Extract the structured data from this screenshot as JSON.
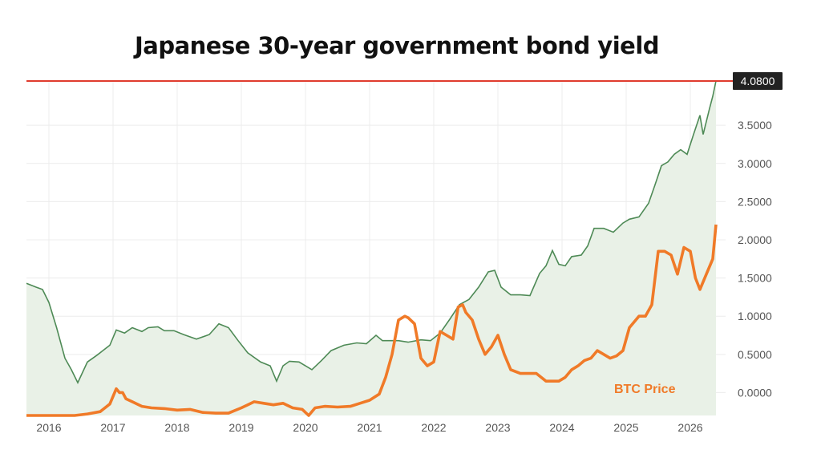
{
  "chart_data": {
    "type": "line",
    "title": "Japanese 30-year government bond yield",
    "xlabel": "",
    "ylabel": "",
    "x_ticks": [
      "2016",
      "2017",
      "2018",
      "2019",
      "2020",
      "2021",
      "2022",
      "2023",
      "2024",
      "2025",
      "2026"
    ],
    "y_ticks": [
      "0.0000",
      "0.5000",
      "1.0000",
      "1.5000",
      "2.0000",
      "2.5000",
      "3.0000",
      "3.5000"
    ],
    "xlim": [
      2015.65,
      2026.55
    ],
    "ylim": [
      -0.3,
      4.3
    ],
    "grid": true,
    "legend": "none",
    "current_value": {
      "label": "4.0800",
      "value": 4.08,
      "color": "#e03c2e"
    },
    "annotation": {
      "text": "BTC Price",
      "color": "#f07a28"
    },
    "colors": {
      "yield_line": "#4e8a56",
      "yield_fill": "#e9f1e7",
      "btc_line": "#f07a28",
      "grid": "#ececec"
    },
    "series": [
      {
        "key": "yield",
        "x": [
          2015.65,
          2015.8,
          2015.9,
          2016.0,
          2016.12,
          2016.25,
          2016.35,
          2016.45,
          2016.6,
          2016.75,
          2016.95,
          2017.05,
          2017.18,
          2017.3,
          2017.45,
          2017.55,
          2017.7,
          2017.8,
          2017.95,
          2018.1,
          2018.3,
          2018.5,
          2018.65,
          2018.8,
          2018.95,
          2019.1,
          2019.3,
          2019.45,
          2019.55,
          2019.65,
          2019.75,
          2019.9,
          2020.1,
          2020.25,
          2020.4,
          2020.6,
          2020.8,
          2020.95,
          2021.1,
          2021.2,
          2021.3,
          2021.45,
          2021.6,
          2021.8,
          2021.95,
          2022.1,
          2022.25,
          2022.4,
          2022.55,
          2022.7,
          2022.85,
          2022.95,
          2023.05,
          2023.2,
          2023.35,
          2023.5,
          2023.65,
          2023.75,
          2023.85,
          2023.95,
          2024.05,
          2024.15,
          2024.3,
          2024.4,
          2024.5,
          2024.65,
          2024.8,
          2024.95,
          2025.05,
          2025.2,
          2025.35,
          2025.45,
          2025.55,
          2025.65,
          2025.75,
          2025.85,
          2025.95,
          2026.05,
          2026.15,
          2026.2,
          2026.3,
          2026.35,
          2026.4
        ],
        "values": [
          1.43,
          1.38,
          1.35,
          1.18,
          0.85,
          0.45,
          0.3,
          0.13,
          0.4,
          0.49,
          0.62,
          0.82,
          0.78,
          0.85,
          0.8,
          0.85,
          0.86,
          0.81,
          0.81,
          0.76,
          0.7,
          0.76,
          0.9,
          0.85,
          0.68,
          0.52,
          0.4,
          0.35,
          0.15,
          0.35,
          0.41,
          0.4,
          0.3,
          0.42,
          0.55,
          0.62,
          0.65,
          0.64,
          0.75,
          0.68,
          0.68,
          0.68,
          0.66,
          0.69,
          0.68,
          0.78,
          0.96,
          1.15,
          1.22,
          1.38,
          1.58,
          1.6,
          1.38,
          1.28,
          1.28,
          1.27,
          1.56,
          1.66,
          1.86,
          1.68,
          1.66,
          1.78,
          1.8,
          1.92,
          2.15,
          2.15,
          2.1,
          2.22,
          2.27,
          2.3,
          2.48,
          2.72,
          2.97,
          3.02,
          3.12,
          3.18,
          3.12,
          3.38,
          3.63,
          3.38,
          3.72,
          3.88,
          4.08
        ]
      },
      {
        "key": "btc",
        "x": [
          2015.65,
          2016.0,
          2016.4,
          2016.6,
          2016.8,
          2016.95,
          2017.05,
          2017.1,
          2017.15,
          2017.2,
          2017.3,
          2017.45,
          2017.6,
          2017.8,
          2018.0,
          2018.2,
          2018.4,
          2018.6,
          2018.8,
          2019.0,
          2019.1,
          2019.2,
          2019.35,
          2019.5,
          2019.65,
          2019.8,
          2019.95,
          2020.05,
          2020.15,
          2020.3,
          2020.5,
          2020.7,
          2020.85,
          2021.0,
          2021.15,
          2021.25,
          2021.35,
          2021.45,
          2021.55,
          2021.6,
          2021.7,
          2021.8,
          2021.9,
          2022.0,
          2022.1,
          2022.2,
          2022.3,
          2022.38,
          2022.45,
          2022.5,
          2022.6,
          2022.7,
          2022.8,
          2022.9,
          2023.0,
          2023.1,
          2023.2,
          2023.35,
          2023.5,
          2023.6,
          2023.75,
          2023.85,
          2023.95,
          2024.05,
          2024.15,
          2024.25,
          2024.35,
          2024.45,
          2024.55,
          2024.65,
          2024.75,
          2024.85,
          2024.95,
          2025.05,
          2025.2,
          2025.3,
          2025.4,
          2025.5,
          2025.6,
          2025.7,
          2025.8,
          2025.9,
          2026.0,
          2026.08,
          2026.15,
          2026.25,
          2026.35,
          2026.4
        ],
        "values": [
          -0.34,
          -0.32,
          -0.3,
          -0.28,
          -0.25,
          -0.15,
          0.05,
          0.0,
          0.0,
          -0.08,
          -0.12,
          -0.18,
          -0.2,
          -0.21,
          -0.23,
          -0.22,
          -0.26,
          -0.27,
          -0.27,
          -0.2,
          -0.16,
          -0.12,
          -0.14,
          -0.16,
          -0.14,
          -0.2,
          -0.22,
          -0.3,
          -0.2,
          -0.18,
          -0.19,
          -0.18,
          -0.14,
          -0.1,
          -0.02,
          0.2,
          0.5,
          0.95,
          1.0,
          0.98,
          0.9,
          0.45,
          0.35,
          0.4,
          0.8,
          0.75,
          0.7,
          1.12,
          1.15,
          1.05,
          0.95,
          0.7,
          0.5,
          0.6,
          0.75,
          0.5,
          0.3,
          0.25,
          0.25,
          0.25,
          0.15,
          0.15,
          0.15,
          0.2,
          0.3,
          0.35,
          0.42,
          0.45,
          0.55,
          0.5,
          0.45,
          0.48,
          0.55,
          0.85,
          1.0,
          1.0,
          1.15,
          1.85,
          1.85,
          1.8,
          1.55,
          1.9,
          1.85,
          1.5,
          1.35,
          1.55,
          1.75,
          2.2
        ]
      }
    ]
  }
}
